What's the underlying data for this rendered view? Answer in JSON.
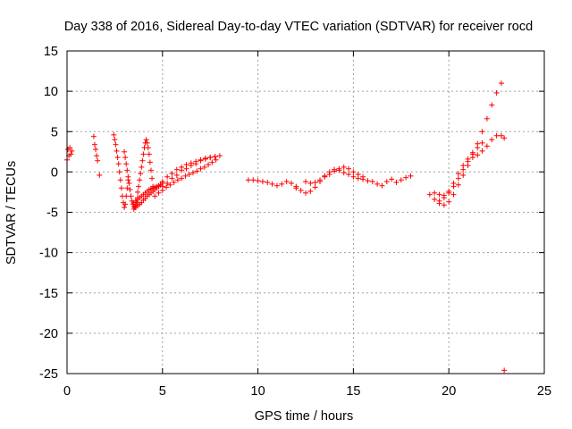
{
  "chart_data": {
    "type": "scatter",
    "title": "Day 338 of 2016, Sidereal Day-to-day VTEC variation (SDTVAR) for receiver rocd",
    "xlabel": "GPS time / hours",
    "ylabel": "SDTVAR / TECUs",
    "xlim": [
      0,
      25
    ],
    "ylim": [
      -25,
      15
    ],
    "xticks": [
      0,
      5,
      10,
      15,
      20,
      25
    ],
    "yticks": [
      15,
      10,
      5,
      0,
      -5,
      -10,
      -15,
      -20,
      -25
    ],
    "grid": true,
    "marker": "+",
    "color": "#ff0000",
    "series": [
      {
        "name": "rocd",
        "segments": [
          {
            "x": [
              0.0,
              0.05,
              0.1,
              0.15,
              0.2,
              0.25
            ],
            "y": [
              1.5,
              2.8,
              2.0,
              3.0,
              2.2,
              2.6
            ]
          },
          {
            "x": [
              1.4,
              1.45,
              1.5,
              1.55,
              1.6
            ],
            "y": [
              4.4,
              3.4,
              2.8,
              2.0,
              1.4
            ]
          },
          {
            "x": [
              1.7
            ],
            "y": [
              -0.4
            ]
          },
          {
            "x": [
              2.45,
              2.5,
              2.55,
              2.6,
              2.65,
              2.7,
              2.75,
              2.8,
              2.85,
              2.9,
              2.95,
              3.0,
              3.05,
              3.1,
              3.15,
              3.2
            ],
            "y": [
              4.6,
              4.0,
              3.4,
              2.6,
              1.8,
              1.0,
              0.0,
              -1.0,
              -2.0,
              -3.0,
              -3.8,
              -4.4,
              -4.0,
              -3.0,
              -2.0,
              -1.0
            ]
          },
          {
            "x": [
              3.0,
              3.05,
              3.1,
              3.15,
              3.2,
              3.25,
              3.3,
              3.35,
              3.4,
              3.45,
              3.5,
              3.55,
              3.6,
              3.65,
              3.7
            ],
            "y": [
              2.5,
              1.8,
              1.0,
              0.2,
              -0.6,
              -1.4,
              -2.2,
              -3.0,
              -3.6,
              -4.0,
              -4.3,
              -4.4,
              -4.2,
              -3.8,
              -3.2
            ]
          },
          {
            "x": [
              3.7,
              3.75,
              3.8,
              3.85,
              3.9,
              3.95,
              4.0,
              4.05,
              4.1,
              4.15,
              4.2,
              4.25,
              4.3,
              4.35,
              4.4,
              4.45,
              4.5
            ],
            "y": [
              -2.5,
              -1.8,
              -1.0,
              -0.2,
              0.6,
              1.4,
              2.2,
              3.0,
              3.6,
              4.0,
              3.6,
              3.0,
              2.2,
              1.2,
              0.2,
              -0.8,
              -1.8
            ]
          },
          {
            "x": [
              3.5,
              3.6,
              3.7,
              3.8,
              3.9,
              4.0,
              4.1,
              4.2,
              4.3,
              4.4,
              4.5,
              4.6,
              4.7,
              4.8,
              4.9,
              5.0
            ],
            "y": [
              -4.6,
              -4.4,
              -4.2,
              -4.0,
              -3.8,
              -3.5,
              -3.3,
              -3.0,
              -2.8,
              -2.6,
              -2.4,
              -2.2,
              -2.0,
              -1.8,
              -1.6,
              -1.4
            ]
          },
          {
            "x": [
              3.5,
              3.6,
              3.7,
              3.8,
              3.9,
              4.0,
              4.1,
              4.2,
              4.3,
              4.4,
              4.5,
              4.6,
              4.7,
              4.8,
              4.9,
              5.0
            ],
            "y": [
              -3.8,
              -3.6,
              -3.4,
              -3.2,
              -3.0,
              -2.8,
              -2.6,
              -2.4,
              -2.2,
              -2.1,
              -2.0,
              -1.9,
              -1.8,
              -1.7,
              -1.6,
              -1.4
            ]
          },
          {
            "x": [
              5.0,
              5.25,
              5.5,
              5.75,
              6.0,
              6.25,
              6.5,
              6.75,
              7.0,
              7.25,
              7.5,
              7.75,
              8.0
            ],
            "y": [
              -1.8,
              -1.4,
              -0.8,
              -0.4,
              0.2,
              0.4,
              0.8,
              1.0,
              1.4,
              1.6,
              1.8,
              1.9,
              2.0
            ]
          },
          {
            "x": [
              5.0,
              5.25,
              5.5,
              5.75,
              6.0,
              6.25,
              6.5,
              6.75,
              7.0,
              7.25,
              7.5,
              7.75
            ],
            "y": [
              -1.2,
              -0.6,
              -0.2,
              0.3,
              0.6,
              0.9,
              1.1,
              1.3,
              1.5,
              1.7,
              1.8,
              1.9
            ]
          },
          {
            "x": [
              4.6,
              4.8,
              5.0,
              5.2,
              5.4,
              5.6,
              5.8,
              6.0,
              6.2,
              6.4,
              6.6,
              6.8,
              7.0,
              7.2,
              7.4,
              7.6,
              7.8
            ],
            "y": [
              -3.0,
              -2.6,
              -2.3,
              -1.9,
              -1.6,
              -1.3,
              -1.0,
              -0.8,
              -0.5,
              -0.3,
              -0.1,
              0.1,
              0.4,
              0.6,
              0.9,
              1.2,
              1.5
            ]
          },
          {
            "x": [
              9.5,
              9.75,
              10.0,
              10.25,
              10.5,
              10.75,
              11.0,
              11.25,
              11.5,
              11.75,
              12.0
            ],
            "y": [
              -1.0,
              -1.0,
              -1.1,
              -1.2,
              -1.3,
              -1.5,
              -1.7,
              -1.5,
              -1.2,
              -1.4,
              -1.8
            ]
          },
          {
            "x": [
              12.0,
              12.25,
              12.5,
              12.75,
              13.0,
              13.25,
              13.5,
              13.75,
              14.0,
              14.25,
              14.5,
              14.75,
              15.0,
              15.25,
              15.5
            ],
            "y": [
              -2.0,
              -2.3,
              -2.6,
              -2.4,
              -1.9,
              -1.2,
              -0.5,
              0.0,
              0.3,
              0.2,
              -0.1,
              -0.3,
              -0.6,
              -0.8,
              -0.9
            ]
          },
          {
            "x": [
              12.5,
              12.75,
              13.0,
              13.25,
              13.5,
              13.75,
              14.0,
              14.25,
              14.5,
              14.75,
              15.0,
              15.25,
              15.5
            ],
            "y": [
              -1.2,
              -1.4,
              -1.3,
              -1.0,
              -0.6,
              -0.3,
              0.1,
              0.4,
              0.6,
              0.4,
              0.0,
              -0.3,
              -0.6
            ]
          },
          {
            "x": [
              15.5,
              15.75,
              16.0,
              16.25,
              16.5,
              16.75,
              17.0,
              17.25,
              17.5,
              17.75,
              18.0
            ],
            "y": [
              -0.9,
              -1.1,
              -1.2,
              -1.5,
              -1.7,
              -1.2,
              -0.9,
              -1.3,
              -1.0,
              -0.7,
              -0.5
            ]
          },
          {
            "x": [
              19.0,
              19.25,
              19.5,
              19.75,
              20.0,
              20.25,
              20.5,
              20.75,
              21.0,
              21.25,
              21.5,
              21.75,
              22.0,
              22.25,
              22.5,
              22.75
            ],
            "y": [
              -2.8,
              -3.4,
              -3.9,
              -4.1,
              -3.7,
              -2.8,
              -1.6,
              -0.4,
              0.8,
              2.2,
              3.5,
              5.0,
              6.6,
              8.3,
              9.8,
              11.0
            ]
          },
          {
            "x": [
              19.25,
              19.5,
              19.75,
              20.0,
              20.25,
              20.5,
              20.75,
              21.0,
              21.25,
              21.5,
              21.75,
              22.0,
              22.25,
              22.5,
              22.75,
              22.9
            ],
            "y": [
              -2.6,
              -2.8,
              -2.9,
              -2.6,
              -1.8,
              -0.8,
              0.3,
              1.3,
              1.8,
              2.1,
              2.6,
              3.2,
              4.0,
              4.5,
              4.5,
              4.2
            ]
          },
          {
            "x": [
              19.5,
              19.75,
              20.0,
              20.25,
              20.5,
              20.75,
              21.0,
              21.25,
              21.5,
              21.75
            ],
            "y": [
              -3.6,
              -3.2,
              -2.4,
              -1.4,
              -0.2,
              0.8,
              1.6,
              2.4,
              3.0,
              3.6
            ]
          },
          {
            "x": [
              22.9
            ],
            "y": [
              -24.6
            ]
          }
        ]
      }
    ]
  }
}
